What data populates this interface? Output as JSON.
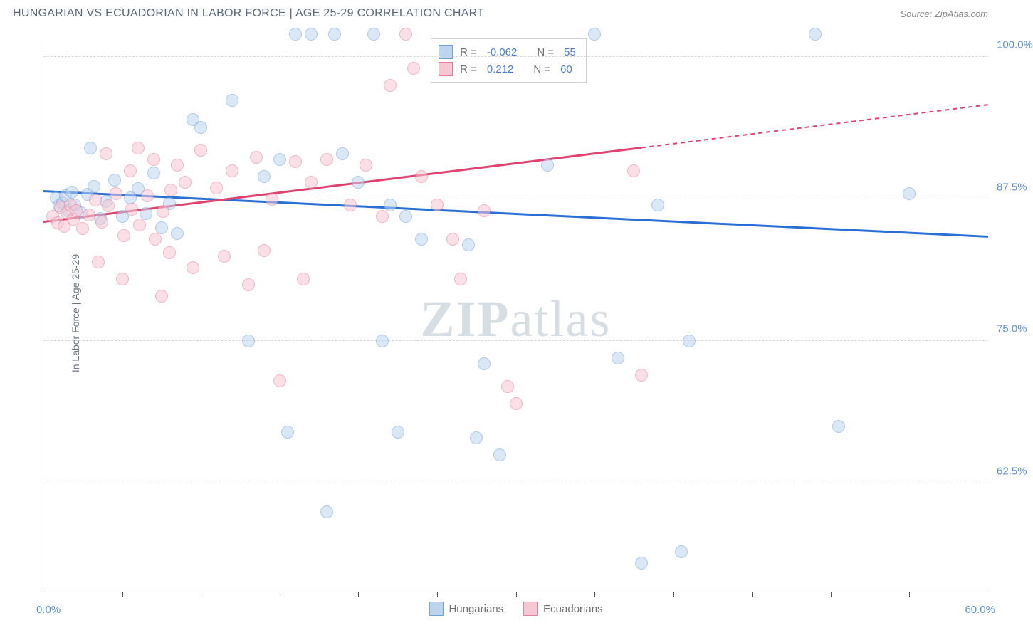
{
  "title": "HUNGARIAN VS ECUADORIAN IN LABOR FORCE | AGE 25-29 CORRELATION CHART",
  "source": "Source: ZipAtlas.com",
  "watermark": {
    "part1": "ZIP",
    "part2": "atlas"
  },
  "yaxis_title": "In Labor Force | Age 25-29",
  "chart": {
    "type": "scatter",
    "xlim": [
      0,
      60
    ],
    "ylim": [
      53,
      102
    ],
    "x_label_min": "0.0%",
    "x_label_max": "60.0%",
    "y_ticks": [
      62.5,
      75.0,
      87.5,
      100.0
    ],
    "y_tick_labels": [
      "62.5%",
      "75.0%",
      "87.5%",
      "100.0%"
    ],
    "x_tick_positions": [
      5,
      10,
      15,
      20,
      25,
      30,
      35,
      40,
      45,
      50,
      55
    ],
    "background_color": "#ffffff",
    "grid_color": "#d8d8d8",
    "axis_color": "#555555",
    "label_color": "#5a8fd6",
    "marker_radius": 9,
    "marker_opacity": 0.55,
    "series": [
      {
        "name": "Hungarians",
        "color_fill": "#bcd4ee",
        "color_stroke": "#6fa2d9",
        "line_color": "#2a6fd6",
        "R": "-0.062",
        "N": "55",
        "trend": {
          "x1": 0,
          "y1": 88.2,
          "x2": 60,
          "y2": 84.2,
          "solid_until_x": 60
        },
        "points": [
          [
            0.8,
            87.6
          ],
          [
            1.0,
            86.9
          ],
          [
            1.2,
            87.2
          ],
          [
            1.4,
            87.8
          ],
          [
            1.6,
            86.5
          ],
          [
            1.8,
            88.1
          ],
          [
            2.0,
            87.0
          ],
          [
            2.4,
            86.3
          ],
          [
            2.8,
            87.9
          ],
          [
            3.2,
            88.6
          ],
          [
            3.6,
            85.8
          ],
          [
            4.0,
            87.3
          ],
          [
            4.5,
            89.2
          ],
          [
            5.0,
            86.0
          ],
          [
            5.5,
            87.6
          ],
          [
            6.0,
            88.4
          ],
          [
            6.5,
            86.2
          ],
          [
            7.0,
            89.8
          ],
          [
            7.5,
            85.0
          ],
          [
            8.0,
            87.1
          ],
          [
            3.0,
            92.0
          ],
          [
            9.5,
            94.5
          ],
          [
            10.0,
            93.8
          ],
          [
            12.0,
            96.2
          ],
          [
            14.0,
            89.5
          ],
          [
            15.0,
            91.0
          ],
          [
            16.0,
            102.0
          ],
          [
            17.0,
            102.0
          ],
          [
            18.5,
            102.0
          ],
          [
            19.0,
            91.5
          ],
          [
            20.0,
            89.0
          ],
          [
            21.0,
            102.0
          ],
          [
            22.0,
            87.0
          ],
          [
            23.0,
            86.0
          ],
          [
            24.0,
            84.0
          ],
          [
            8.5,
            84.5
          ],
          [
            13.0,
            75.0
          ],
          [
            15.5,
            67.0
          ],
          [
            18.0,
            60.0
          ],
          [
            21.5,
            75.0
          ],
          [
            22.5,
            67.0
          ],
          [
            27.0,
            83.5
          ],
          [
            27.5,
            66.5
          ],
          [
            28.0,
            73.0
          ],
          [
            29.0,
            65.0
          ],
          [
            32.0,
            90.5
          ],
          [
            35.0,
            102.0
          ],
          [
            39.0,
            87.0
          ],
          [
            36.5,
            73.5
          ],
          [
            38.0,
            55.5
          ],
          [
            41.0,
            75.0
          ],
          [
            49.0,
            102.0
          ],
          [
            50.5,
            67.5
          ],
          [
            40.5,
            56.5
          ],
          [
            55.0,
            88.0
          ]
        ]
      },
      {
        "name": "Ecuadorians",
        "color_fill": "#f6c6d3",
        "color_stroke": "#e57d9b",
        "line_color": "#e0436f",
        "R": "0.212",
        "N": "60",
        "trend": {
          "x1": 0,
          "y1": 85.5,
          "x2": 60,
          "y2": 95.8,
          "solid_until_x": 38
        },
        "points": [
          [
            0.6,
            86.0
          ],
          [
            0.9,
            85.4
          ],
          [
            1.1,
            86.8
          ],
          [
            1.3,
            85.1
          ],
          [
            1.5,
            86.3
          ],
          [
            1.7,
            87.0
          ],
          [
            1.9,
            85.7
          ],
          [
            2.1,
            86.5
          ],
          [
            2.5,
            84.9
          ],
          [
            2.9,
            86.1
          ],
          [
            3.3,
            87.4
          ],
          [
            3.7,
            85.5
          ],
          [
            4.1,
            86.9
          ],
          [
            4.6,
            88.0
          ],
          [
            5.1,
            84.3
          ],
          [
            5.6,
            86.6
          ],
          [
            6.1,
            85.2
          ],
          [
            6.6,
            87.8
          ],
          [
            7.1,
            84.0
          ],
          [
            7.6,
            86.4
          ],
          [
            8.1,
            88.3
          ],
          [
            4.0,
            91.5
          ],
          [
            5.5,
            90.0
          ],
          [
            6.0,
            92.0
          ],
          [
            7.0,
            91.0
          ],
          [
            8.5,
            90.5
          ],
          [
            9.0,
            89.0
          ],
          [
            10.0,
            91.8
          ],
          [
            11.0,
            88.5
          ],
          [
            12.0,
            90.0
          ],
          [
            13.5,
            91.2
          ],
          [
            14.5,
            87.5
          ],
          [
            16.0,
            90.8
          ],
          [
            17.0,
            89.0
          ],
          [
            18.0,
            91.0
          ],
          [
            19.5,
            87.0
          ],
          [
            20.5,
            90.5
          ],
          [
            21.5,
            86.0
          ],
          [
            23.0,
            102.0
          ],
          [
            24.0,
            89.5
          ],
          [
            25.0,
            87.0
          ],
          [
            26.0,
            84.0
          ],
          [
            3.5,
            82.0
          ],
          [
            5.0,
            80.5
          ],
          [
            7.5,
            79.0
          ],
          [
            9.5,
            81.5
          ],
          [
            11.5,
            82.5
          ],
          [
            13.0,
            80.0
          ],
          [
            14.0,
            83.0
          ],
          [
            16.5,
            80.5
          ],
          [
            8.0,
            82.8
          ],
          [
            22.0,
            97.5
          ],
          [
            23.5,
            99.0
          ],
          [
            26.5,
            80.5
          ],
          [
            28.0,
            86.5
          ],
          [
            29.5,
            71.0
          ],
          [
            30.0,
            69.5
          ],
          [
            37.5,
            90.0
          ],
          [
            38.0,
            72.0
          ],
          [
            15.0,
            71.5
          ]
        ]
      }
    ]
  },
  "legend_top_labels": {
    "R": "R =",
    "N": "N ="
  },
  "legend_bottom": [
    {
      "name": "Hungarians",
      "fill": "#bcd4ee",
      "stroke": "#6fa2d9"
    },
    {
      "name": "Ecuadorians",
      "fill": "#f6c6d3",
      "stroke": "#e57d9b"
    }
  ]
}
